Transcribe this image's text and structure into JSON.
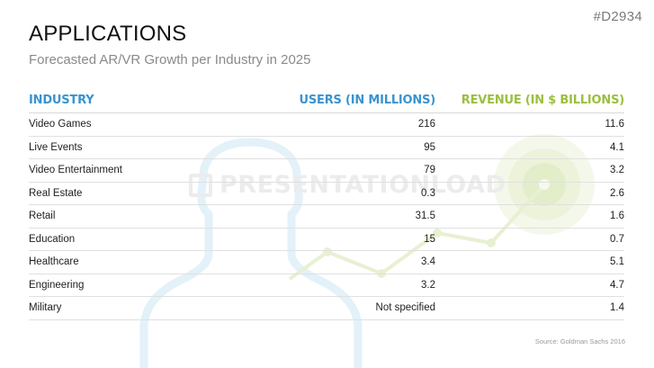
{
  "slide_id": "#D2934",
  "title": "APPLICATIONS",
  "subtitle": "Forecasted AR/VR Growth per Industry in 2025",
  "watermark": "PRESENTATIONLOAD",
  "table": {
    "headers": {
      "industry": "INDUSTRY",
      "users": "USERS (IN MILLIONS)",
      "revenue": "REVENUE (IN $ BILLIONS)"
    },
    "rows": [
      {
        "industry": "Video Games",
        "users": "216",
        "revenue": "11.6"
      },
      {
        "industry": "Live Events",
        "users": "95",
        "revenue": "4.1"
      },
      {
        "industry": "Video Entertainment",
        "users": "79",
        "revenue": "3.2"
      },
      {
        "industry": "Real Estate",
        "users": "0.3",
        "revenue": "2.6"
      },
      {
        "industry": "Retail",
        "users": "31.5",
        "revenue": "1.6"
      },
      {
        "industry": "Education",
        "users": "15",
        "revenue": "0.7"
      },
      {
        "industry": "Healthcare",
        "users": "3.4",
        "revenue": "5.1"
      },
      {
        "industry": "Engineering",
        "users": "3.2",
        "revenue": "4.7"
      },
      {
        "industry": "Military",
        "users": "Not specified",
        "revenue": "1.4"
      }
    ]
  },
  "source": {
    "label": "Source:",
    "text": "Goldman Sachs 2016"
  },
  "colors": {
    "accent_blue": "#3a93cf",
    "accent_green": "#9bbf3f",
    "person_outline": "#e3f1f9",
    "trend_line": "#e8f0d2"
  },
  "icons": [
    "person-silhouette-icon",
    "trend-line-icon",
    "target-circle-icon",
    "presentationload-logo-icon"
  ]
}
